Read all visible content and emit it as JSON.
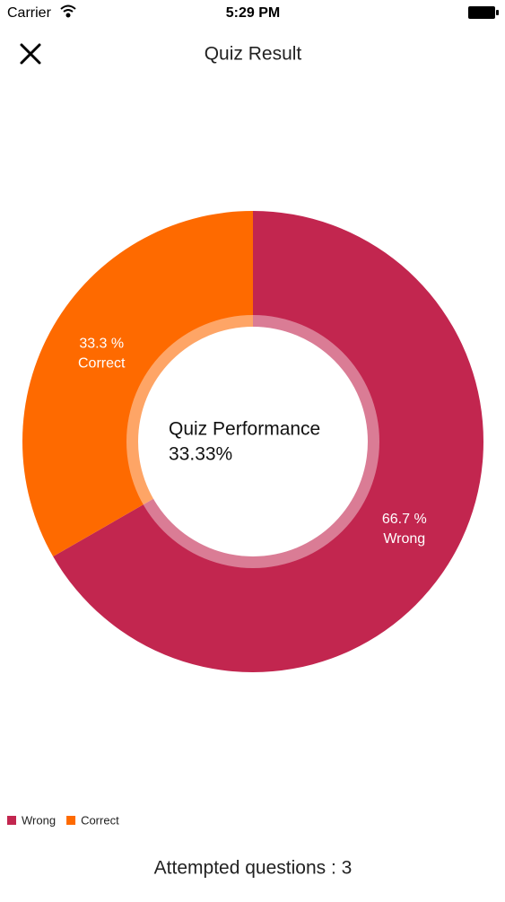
{
  "status_bar": {
    "carrier": "Carrier",
    "time": "5:29 PM"
  },
  "nav": {
    "title": "Quiz Result"
  },
  "chart_data": {
    "type": "pie",
    "categories": [
      "Wrong",
      "Correct"
    ],
    "values": [
      66.7,
      33.3
    ],
    "value_labels": [
      "66.7 %",
      "33.3 %"
    ],
    "colors": [
      "#c2264f",
      "#fe6a00"
    ],
    "center_title": "Quiz Performance",
    "center_value": "33.33%",
    "legend": "bottom-left"
  },
  "footer": {
    "attempted": "Attempted questions : 3"
  }
}
